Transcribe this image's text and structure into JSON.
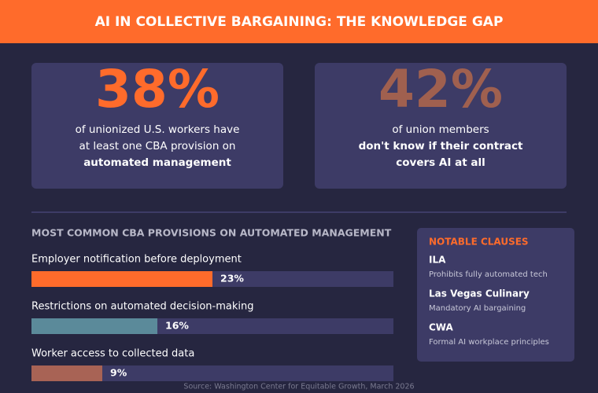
{
  "header": {
    "title": "AI IN COLLECTIVE BARGAINING: THE KNOWLEDGE GAP"
  },
  "stats": [
    {
      "figure": "38%",
      "lines": [
        "of unionized U.S. workers have",
        "at least one CBA provision on",
        "automated management"
      ]
    },
    {
      "figure": "42%",
      "lines": [
        "of union members",
        "don't know if their contract",
        "covers AI at all"
      ]
    }
  ],
  "provisions": {
    "title": "MOST COMMON CBA PROVISIONS ON AUTOMATED MANAGEMENT",
    "xlim": [
      0,
      46
    ],
    "items": [
      {
        "label": "Employer notification before deployment",
        "value": 23,
        "value_label": "23%",
        "color": "#ff6b2b"
      },
      {
        "label": "Restrictions on automated decision-making",
        "value": 16,
        "value_label": "16%",
        "color": "#5b8a9a"
      },
      {
        "label": "Worker access to collected data",
        "value": 9,
        "value_label": "9%",
        "color": "#a86355"
      }
    ]
  },
  "clauses": {
    "title": "NOTABLE CLAUSES",
    "items": [
      {
        "name": "ILA",
        "description": "Prohibits fully automated tech"
      },
      {
        "name": "Las Vegas Culinary",
        "description": "Mandatory AI bargaining"
      },
      {
        "name": "CWA",
        "description": "Formal AI workplace principles"
      }
    ]
  },
  "source": "Source: Washington Center for Equitable Growth, March 2026"
}
